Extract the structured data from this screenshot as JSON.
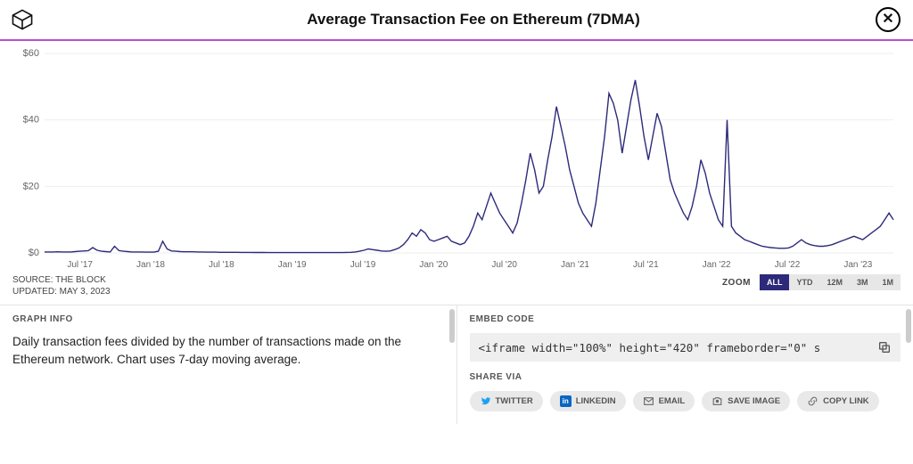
{
  "header": {
    "title": "Average Transaction Fee on Ethereum (7DMA)"
  },
  "chart": {
    "type": "line",
    "line_color": "#2d2a7a",
    "line_width": 1.4,
    "background_color": "#ffffff",
    "grid_color": "#eeeeee",
    "accent_divider_color": "#b84fd1",
    "y": {
      "min": 0,
      "max": 60,
      "ticks": [
        0,
        20,
        40,
        60
      ],
      "prefix": "$",
      "label_fontsize": 11,
      "label_color": "#666666"
    },
    "x": {
      "labels": [
        "Jul '17",
        "Jan '18",
        "Jul '18",
        "Jan '19",
        "Jul '19",
        "Jan '20",
        "Jul '20",
        "Jan '21",
        "Jul '21",
        "Jan '22",
        "Jul '22",
        "Jan '23"
      ],
      "label_fontsize": 10,
      "label_color": "#666666"
    },
    "series": [
      0.3,
      0.3,
      0.3,
      0.35,
      0.3,
      0.3,
      0.3,
      0.4,
      0.5,
      0.6,
      0.7,
      1.6,
      0.8,
      0.5,
      0.4,
      0.3,
      2.0,
      0.7,
      0.5,
      0.4,
      0.3,
      0.3,
      0.3,
      0.25,
      0.25,
      0.25,
      0.5,
      3.5,
      1.2,
      0.6,
      0.5,
      0.4,
      0.35,
      0.35,
      0.35,
      0.3,
      0.3,
      0.25,
      0.25,
      0.25,
      0.2,
      0.2,
      0.2,
      0.18,
      0.18,
      0.16,
      0.15,
      0.15,
      0.14,
      0.14,
      0.13,
      0.12,
      0.12,
      0.12,
      0.11,
      0.11,
      0.1,
      0.1,
      0.1,
      0.1,
      0.1,
      0.1,
      0.1,
      0.1,
      0.1,
      0.1,
      0.1,
      0.1,
      0.12,
      0.15,
      0.2,
      0.3,
      0.5,
      0.8,
      1.2,
      1.0,
      0.8,
      0.6,
      0.5,
      0.6,
      1.0,
      1.5,
      2.5,
      4.0,
      6.0,
      5.0,
      7.0,
      6.0,
      4.0,
      3.5,
      4.0,
      4.5,
      5.0,
      3.5,
      3.0,
      2.5,
      3.0,
      5.0,
      8.0,
      12.0,
      10.0,
      14.0,
      18.0,
      15.0,
      12.0,
      10.0,
      8.0,
      6.0,
      9.0,
      15.0,
      22.0,
      30.0,
      25.0,
      18.0,
      20.0,
      28.0,
      35.0,
      44.0,
      38.0,
      32.0,
      25.0,
      20.0,
      15.0,
      12.0,
      10.0,
      8.0,
      15.0,
      25.0,
      35.0,
      48.0,
      45.0,
      40.0,
      30.0,
      38.0,
      46.0,
      52.0,
      44.0,
      35.0,
      28.0,
      35.0,
      42.0,
      38.0,
      30.0,
      22.0,
      18.0,
      15.0,
      12.0,
      10.0,
      14.0,
      20.0,
      28.0,
      24.0,
      18.0,
      14.0,
      10.0,
      8.0,
      40.0,
      8.0,
      6.0,
      5.0,
      4.0,
      3.5,
      3.0,
      2.5,
      2.0,
      1.8,
      1.6,
      1.5,
      1.4,
      1.4,
      1.5,
      2.0,
      3.0,
      4.0,
      3.0,
      2.5,
      2.2,
      2.0,
      2.0,
      2.2,
      2.5,
      3.0,
      3.5,
      4.0,
      4.5,
      5.0,
      4.5,
      4.0,
      5.0,
      6.0,
      7.0,
      8.0,
      10.0,
      12.0,
      10.0
    ]
  },
  "meta": {
    "source_label": "SOURCE:",
    "source_value": "THE BLOCK",
    "updated_label": "UPDATED:",
    "updated_value": "MAY 3, 2023"
  },
  "zoom": {
    "label": "ZOOM",
    "buttons": [
      "ALL",
      "YTD",
      "12M",
      "3M",
      "1M"
    ],
    "active": "ALL",
    "active_bg": "#2d2a7a",
    "inactive_bg": "#e7e7e7"
  },
  "info": {
    "heading": "GRAPH INFO",
    "text": "Daily transaction fees divided by the number of transactions made on the Ethereum network. Chart uses 7-day moving average."
  },
  "embed": {
    "heading": "EMBED CODE",
    "code": "<iframe width=\"100%\" height=\"420\" frameborder=\"0\" s"
  },
  "share": {
    "heading": "SHARE VIA",
    "buttons": [
      {
        "key": "twitter",
        "label": "TWITTER"
      },
      {
        "key": "linkedin",
        "label": "LINKEDIN"
      },
      {
        "key": "email",
        "label": "EMAIL"
      },
      {
        "key": "save",
        "label": "SAVE IMAGE"
      },
      {
        "key": "copy",
        "label": "COPY LINK"
      }
    ]
  }
}
